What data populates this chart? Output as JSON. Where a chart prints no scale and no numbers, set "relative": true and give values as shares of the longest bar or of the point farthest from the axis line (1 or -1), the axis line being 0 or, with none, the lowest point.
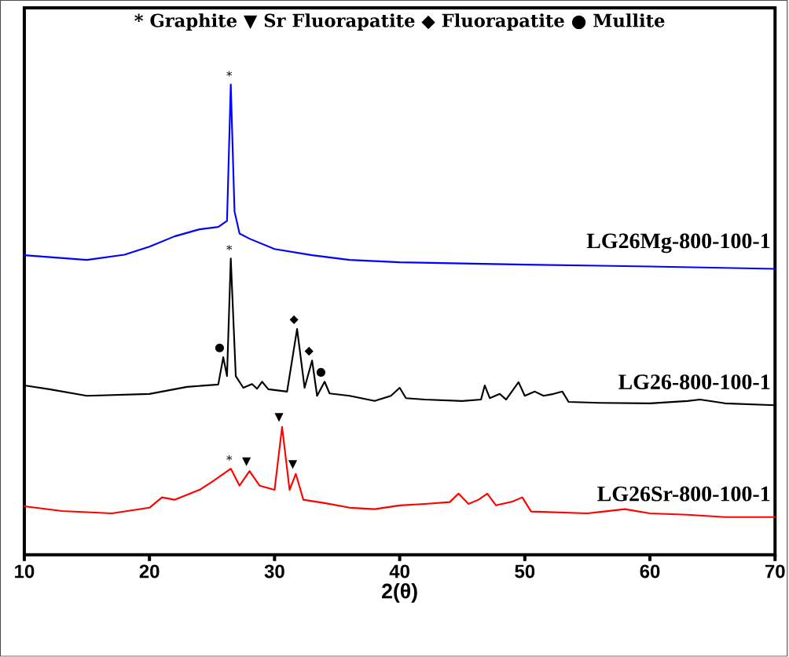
{
  "chart_data": {
    "type": "line",
    "title": "* Graphite ▼ Sr Fluorapatite ◆ Fluorapatite ● Mullite",
    "xlabel": "2(θ)",
    "relative": true,
    "marker": "none",
    "line_style": "solid",
    "grid": false,
    "tick_labels": "x",
    "xlim": [
      10,
      70
    ],
    "xticks": [
      10,
      20,
      30,
      40,
      50,
      60,
      70
    ],
    "series": [
      {
        "name": "LG26Mg-800-100-1",
        "color": "#0000ff",
        "x": [
          10,
          15,
          18,
          20,
          22,
          24,
          25.5,
          26.2,
          26.5,
          26.8,
          27.2,
          28,
          30,
          33,
          36,
          40,
          50,
          60,
          70
        ],
        "values": [
          0.637,
          0.627,
          0.638,
          0.655,
          0.677,
          0.692,
          0.697,
          0.71,
          1.0,
          0.73,
          0.683,
          0.672,
          0.65,
          0.637,
          0.627,
          0.622,
          0.617,
          0.613,
          0.608
        ]
      },
      {
        "name": "LG26-800-100-1",
        "color": "#000000",
        "x": [
          10,
          12,
          15,
          20,
          23,
          25.5,
          25.9,
          26.2,
          26.5,
          26.9,
          27.5,
          28.2,
          28.6,
          29,
          29.5,
          31,
          31.8,
          32.4,
          33,
          33.4,
          34,
          34.4,
          36,
          38,
          39.3,
          40,
          40.5,
          42,
          45,
          46.5,
          46.8,
          47.2,
          48,
          48.5,
          49.5,
          50,
          50.8,
          51.5,
          52.3,
          53,
          53.5,
          56,
          60,
          63,
          64,
          66,
          70
        ],
        "values": [
          0.36,
          0.352,
          0.338,
          0.342,
          0.357,
          0.362,
          0.42,
          0.38,
          0.63,
          0.38,
          0.355,
          0.363,
          0.353,
          0.368,
          0.352,
          0.347,
          0.48,
          0.355,
          0.413,
          0.338,
          0.368,
          0.343,
          0.338,
          0.327,
          0.338,
          0.355,
          0.333,
          0.33,
          0.327,
          0.33,
          0.36,
          0.333,
          0.342,
          0.33,
          0.367,
          0.338,
          0.347,
          0.338,
          0.342,
          0.347,
          0.325,
          0.323,
          0.322,
          0.327,
          0.33,
          0.322,
          0.318
        ]
      },
      {
        "name": "LG26Sr-800-100-1",
        "color": "#ff0000",
        "x": [
          10,
          13,
          17,
          20,
          21,
          22,
          24,
          25,
          26.5,
          27.2,
          28,
          28.8,
          30,
          30.6,
          31.2,
          31.7,
          32.3,
          34,
          36,
          38,
          40,
          42,
          44,
          44.7,
          45.5,
          46.3,
          47,
          47.7,
          49,
          49.8,
          50.5,
          55,
          58,
          60,
          63,
          66,
          70
        ],
        "values": [
          0.103,
          0.093,
          0.088,
          0.1,
          0.122,
          0.117,
          0.138,
          0.155,
          0.183,
          0.147,
          0.178,
          0.147,
          0.138,
          0.272,
          0.138,
          0.172,
          0.117,
          0.11,
          0.1,
          0.097,
          0.105,
          0.108,
          0.112,
          0.13,
          0.108,
          0.117,
          0.13,
          0.105,
          0.113,
          0.122,
          0.092,
          0.088,
          0.097,
          0.088,
          0.085,
          0.08,
          0.08
        ]
      }
    ],
    "annotations": [
      {
        "text": "*",
        "x": 26.5,
        "y": 1.0
      },
      {
        "text": "*",
        "x": 26.5,
        "y": 0.63
      },
      {
        "text": "●",
        "x": 25.9,
        "y": 0.42
      },
      {
        "text": "◆",
        "x": 31.8,
        "y": 0.48
      },
      {
        "text": "◆",
        "x": 33,
        "y": 0.413
      },
      {
        "text": "●",
        "x": 34,
        "y": 0.368
      },
      {
        "text": "*",
        "x": 26.5,
        "y": 0.183
      },
      {
        "text": "▼",
        "x": 28,
        "y": 0.178
      },
      {
        "text": "▼",
        "x": 30.6,
        "y": 0.272
      },
      {
        "text": "▼",
        "x": 31.7,
        "y": 0.172
      }
    ]
  }
}
